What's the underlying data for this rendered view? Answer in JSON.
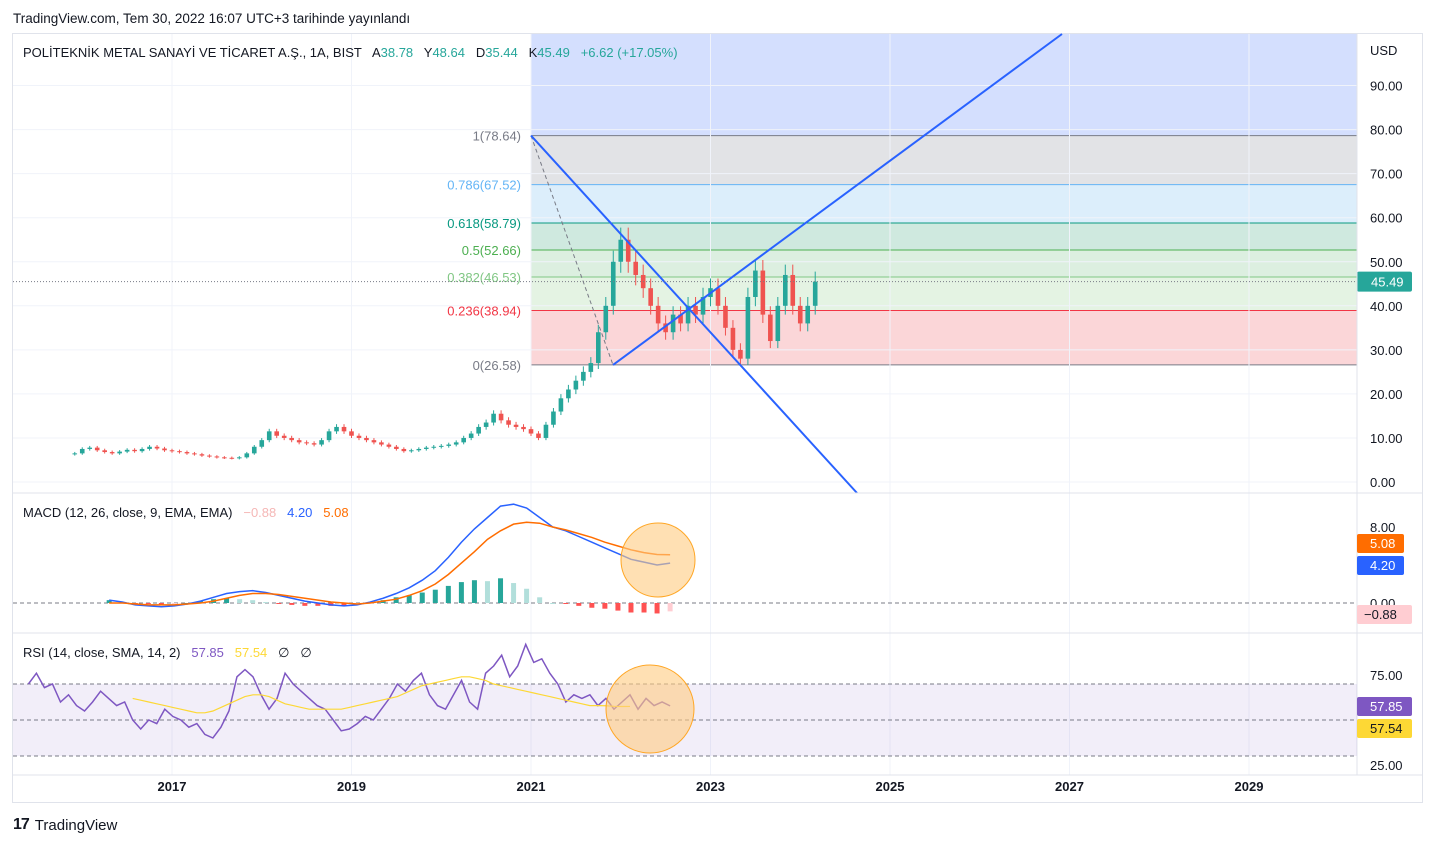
{
  "published": "TradingView.com, Tem 30, 2022 16:07 UTC+3 tarihinde yayınlandı",
  "footer_brand": "TradingView",
  "logo_mark": "17",
  "currency": "USD",
  "legend": {
    "symbol": "POLİTEKNİK METAL SANAYİ VE TİCARET A.Ş., 1A, BIST",
    "open_label": "A",
    "open": "38.78",
    "high_label": "Y",
    "high": "48.64",
    "low_label": "D",
    "low": "35.44",
    "close_label": "K",
    "close": "45.49",
    "change": "+6.62 (+17.05%)"
  },
  "macd_legend": {
    "title": "MACD (12, 26, close, 9, EMA, EMA)",
    "hist": "−0.88",
    "macd": "4.20",
    "signal": "5.08"
  },
  "rsi_legend": {
    "title": "RSI (14, close, SMA, 14, 2)",
    "rsi": "57.85",
    "sma": "57.54",
    "extra1": "∅",
    "extra2": "∅"
  },
  "price_badge": "45.49",
  "macd_badges": {
    "signal": "5.08",
    "macd": "4.20",
    "hist": "−0.88"
  },
  "rsi_badges": {
    "rsi": "57.85",
    "sma": "57.54"
  },
  "colors": {
    "up": "#26a69a",
    "down": "#ef5350",
    "macd": "#2962ff",
    "signal": "#ff6d00",
    "rsi": "#7e57c2",
    "rsi_sma": "#fdd835",
    "trend": "#2962ff"
  },
  "chart_data": [
    {
      "type": "candlestick",
      "title": "POLİTEKNİK METAL SANAYİ VE TİCARET A.Ş., 1A, BIST",
      "timeframe": "1A",
      "x_ticks": [
        "2017",
        "2019",
        "2021",
        "2023",
        "2025",
        "2027",
        "2029"
      ],
      "y_ticks": [
        "0.00",
        "10.00",
        "20.00",
        "30.00",
        "40.00",
        "50.00",
        "60.00",
        "70.00",
        "80.00",
        "90.00"
      ],
      "ylim": [
        0,
        100
      ],
      "start": "2015-12",
      "closes": [
        6.5,
        7.5,
        7.8,
        7.2,
        6.8,
        6.5,
        6.9,
        7.3,
        7.0,
        7.5,
        8.0,
        7.6,
        7.2,
        7.0,
        6.8,
        6.5,
        6.3,
        6.0,
        5.8,
        5.6,
        5.5,
        5.4,
        5.6,
        6.5,
        8.0,
        9.5,
        11.5,
        10.5,
        10.0,
        9.5,
        9.0,
        8.8,
        8.5,
        9.5,
        11.5,
        12.5,
        11.5,
        10.5,
        10.0,
        9.5,
        9.0,
        8.5,
        8.0,
        7.5,
        7.0,
        7.2,
        7.5,
        7.8,
        8.0,
        8.2,
        8.5,
        9.0,
        10.0,
        11.0,
        12.5,
        13.5,
        15.5,
        14.0,
        13.0,
        12.5,
        12.0,
        11.0,
        10.0,
        13.0,
        16.0,
        19.0,
        21.0,
        23.0,
        25.0,
        27.0,
        34.0,
        40.0,
        50.0,
        55.0,
        50.0,
        47.0,
        44.0,
        40.0,
        36.0,
        34.0,
        38.0,
        36.0,
        40.0,
        38.0,
        42.0,
        44.0,
        40.0,
        35.0,
        30.0,
        28.0,
        42.0,
        48.0,
        38.0,
        32.0,
        40.0,
        47.0,
        40.0,
        36.0,
        40.0,
        45.49
      ],
      "fib": {
        "levels": [
          "1(78.64)",
          "0.786(67.52)",
          "0.618(58.79)",
          "0.5(52.66)",
          "0.382(46.53)",
          "0.236(38.94)",
          "0(26.58)"
        ],
        "values": [
          78.64,
          67.52,
          58.79,
          52.66,
          46.53,
          38.94,
          26.58
        ]
      },
      "last": 45.49
    },
    {
      "type": "line",
      "title": "MACD (12, 26, close, 9, EMA, EMA)",
      "y_ticks": [
        "0.00",
        "8.00"
      ],
      "series": [
        {
          "name": "MACD",
          "values": [
            0.3,
            0.1,
            -0.2,
            -0.3,
            -0.4,
            -0.3,
            -0.1,
            0.2,
            0.6,
            1.0,
            1.2,
            1.3,
            1.1,
            0.8,
            0.5,
            0.2,
            0.0,
            -0.2,
            -0.3,
            -0.2,
            0.1,
            0.5,
            1.0,
            1.6,
            2.4,
            3.4,
            4.8,
            6.4,
            7.8,
            9.0,
            10.2,
            10.4,
            10.0,
            9.0,
            8.0,
            7.6,
            7.0,
            6.4,
            5.8,
            5.2,
            4.6,
            4.3,
            4.0,
            4.2
          ]
        },
        {
          "name": "Signal",
          "values": [
            0.0,
            0.0,
            -0.1,
            -0.2,
            -0.2,
            -0.2,
            -0.1,
            0.0,
            0.2,
            0.5,
            0.8,
            1.0,
            1.0,
            0.9,
            0.7,
            0.5,
            0.3,
            0.1,
            0.0,
            -0.1,
            0.0,
            0.2,
            0.4,
            0.8,
            1.3,
            2.0,
            3.0,
            4.2,
            5.4,
            6.7,
            7.6,
            8.3,
            8.5,
            8.4,
            8.0,
            7.7,
            7.3,
            6.9,
            6.4,
            6.0,
            5.6,
            5.3,
            5.1,
            5.08
          ]
        }
      ],
      "hist": [
        0.3,
        0.1,
        -0.1,
        -0.1,
        -0.2,
        -0.1,
        0.0,
        0.2,
        0.4,
        0.5,
        0.4,
        0.3,
        0.1,
        -0.1,
        -0.2,
        -0.3,
        -0.3,
        -0.3,
        -0.3,
        -0.1,
        0.1,
        0.3,
        0.6,
        0.8,
        1.1,
        1.4,
        1.8,
        2.2,
        2.4,
        2.3,
        2.6,
        2.1,
        1.5,
        0.6,
        0.0,
        -0.1,
        -0.3,
        -0.5,
        -0.6,
        -0.8,
        -1.0,
        -1.0,
        -1.1,
        -0.88
      ]
    },
    {
      "type": "line",
      "title": "RSI (14, close, SMA, 14, 2)",
      "y_ticks": [
        "25.00",
        "75.00"
      ],
      "bands": [
        30,
        50,
        70
      ],
      "series": [
        {
          "name": "RSI",
          "values": [
            70,
            76,
            68,
            70,
            60,
            64,
            58,
            55,
            60,
            66,
            62,
            58,
            60,
            50,
            45,
            50,
            48,
            56,
            52,
            50,
            46,
            48,
            42,
            40,
            46,
            55,
            74,
            78,
            74,
            64,
            56,
            62,
            76,
            70,
            66,
            62,
            58,
            56,
            50,
            44,
            45,
            48,
            52,
            50,
            56,
            62,
            70,
            66,
            72,
            76,
            64,
            58,
            56,
            64,
            72,
            60,
            56,
            76,
            80,
            86,
            74,
            80,
            92,
            82,
            84,
            76,
            70,
            60,
            64,
            62,
            64,
            58,
            62,
            56,
            60,
            64,
            56,
            62,
            58,
            60,
            57.85
          ]
        },
        {
          "name": "SMA",
          "values": [
            null,
            null,
            null,
            null,
            null,
            null,
            null,
            null,
            null,
            null,
            null,
            null,
            null,
            62,
            61,
            60,
            59,
            58,
            57,
            56,
            55,
            54,
            54,
            55,
            57,
            59,
            61,
            63,
            64,
            64,
            63,
            61,
            59,
            58,
            57,
            56,
            56,
            56,
            56,
            56,
            57,
            58,
            59,
            60,
            61,
            62,
            63,
            65,
            67,
            69,
            70,
            71,
            72,
            73,
            74,
            74,
            73,
            72,
            70,
            69,
            68,
            67,
            66,
            65,
            64,
            63,
            62,
            61,
            60,
            59,
            58,
            58,
            57.9,
            57.6,
            57.5,
            57.54
          ]
        }
      ]
    }
  ]
}
